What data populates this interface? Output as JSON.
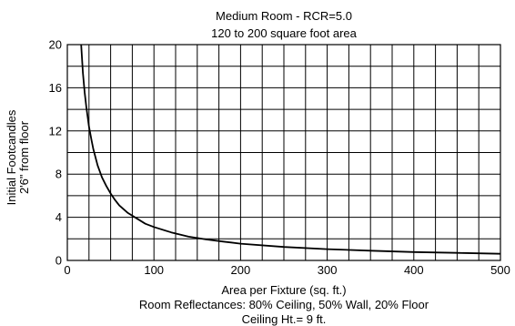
{
  "chart_data": {
    "type": "line",
    "title": "Medium Room - RCR=5.0",
    "subtitle": "120 to 200 square foot area",
    "xlabel": "Area per Fixture (sq. ft.)",
    "ylabel": [
      "Initial Footcandles",
      "2'6\" from floor"
    ],
    "notes": [
      "Room Reflectances: 80% Ceiling, 50% Wall, 20% Floor",
      "Ceiling Ht.= 9 ft."
    ],
    "xlim": [
      0,
      500
    ],
    "ylim": [
      0,
      20
    ],
    "x_ticks": [
      0,
      100,
      200,
      300,
      400,
      500
    ],
    "y_ticks": [
      0,
      4,
      8,
      12,
      16,
      20
    ],
    "grid": true,
    "series": [
      {
        "x": [
          16,
          18,
          20,
          22,
          25,
          28,
          30,
          35,
          40,
          45,
          50,
          55,
          60,
          70,
          80,
          90,
          100,
          120,
          140,
          160,
          180,
          200,
          250,
          300,
          350,
          400,
          450,
          500
        ],
        "y": [
          20.0,
          17.4,
          15.6,
          14.2,
          12.4,
          11.1,
          10.3,
          8.8,
          7.7,
          6.9,
          6.2,
          5.6,
          5.1,
          4.4,
          3.9,
          3.4,
          3.1,
          2.6,
          2.2,
          1.95,
          1.75,
          1.55,
          1.25,
          1.05,
          0.9,
          0.78,
          0.7,
          0.62
        ],
        "color": "#000000"
      }
    ]
  }
}
